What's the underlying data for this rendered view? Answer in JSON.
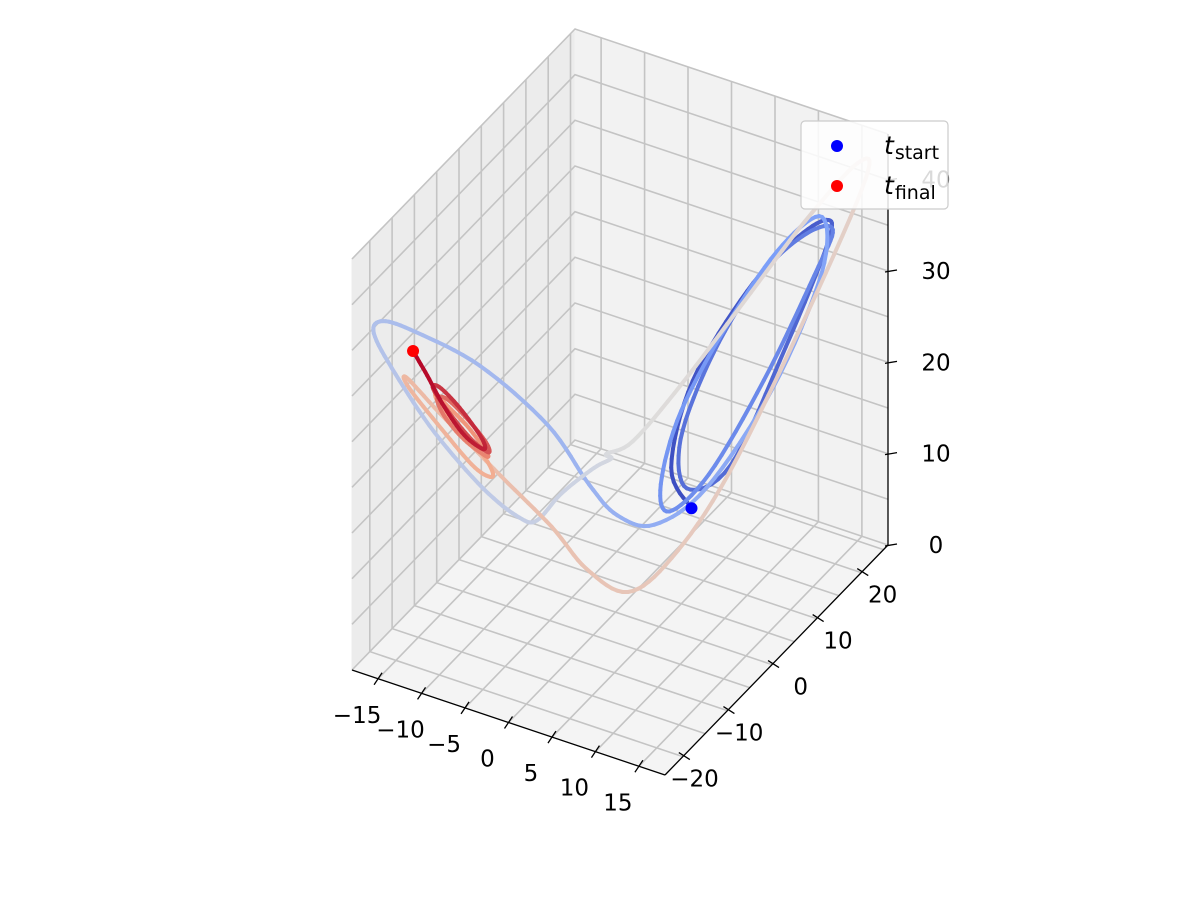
{
  "chart_data": {
    "type": "line",
    "projection": "3d",
    "title": "",
    "xlabel": "",
    "ylabel": "",
    "zlabel": "",
    "xlim": [
      -18,
      18
    ],
    "ylim": [
      -24,
      26
    ],
    "zlim": [
      0,
      45
    ],
    "x_ticks": [
      -15,
      -10,
      -5,
      0,
      5,
      10,
      15
    ],
    "y_ticks": [
      -20,
      -10,
      0,
      10,
      20
    ],
    "z_ticks": [
      0,
      10,
      20,
      30,
      40
    ],
    "grid": true,
    "colormap": "coolwarm",
    "color_encodes": "time",
    "legend": {
      "placement": "top-right",
      "entries": [
        {
          "base": "t",
          "sub": "start",
          "color": "#0000ff"
        },
        {
          "base": "t",
          "sub": "final",
          "color": "#ff0000"
        }
      ]
    },
    "series": [
      {
        "note": "trajectory, colored from blue (t_start) to red (t_final)",
        "points": [
          [
            11.3,
            -5.0,
            17.5
          ],
          [
            8.2,
            -3.5,
            20.2
          ],
          [
            7.6,
            2.5,
            26.5
          ],
          [
            9.0,
            12.0,
            32.0
          ],
          [
            11.5,
            17.5,
            35.5
          ],
          [
            14.5,
            19.0,
            38.0
          ],
          [
            16.5,
            15.5,
            38.0
          ],
          [
            15.5,
            8.0,
            30.0
          ],
          [
            13.0,
            0.5,
            20.0
          ],
          [
            10.0,
            -3.5,
            18.5
          ],
          [
            8.0,
            -1.0,
            22.0
          ],
          [
            8.2,
            6.0,
            28.0
          ],
          [
            10.0,
            13.5,
            33.5
          ],
          [
            12.8,
            18.0,
            36.5
          ],
          [
            15.5,
            18.5,
            37.5
          ],
          [
            16.2,
            13.0,
            35.5
          ],
          [
            14.5,
            5.0,
            27.5
          ],
          [
            11.5,
            -1.5,
            19.5
          ],
          [
            8.5,
            -4.5,
            16.0
          ],
          [
            7.0,
            -3.5,
            18.0
          ],
          [
            6.8,
            1.5,
            23.5
          ],
          [
            8.3,
            10.0,
            30.0
          ],
          [
            10.5,
            17.0,
            35.0
          ],
          [
            13.5,
            20.0,
            37.5
          ],
          [
            15.5,
            16.0,
            34.0
          ],
          [
            14.0,
            8.0,
            25.0
          ],
          [
            10.5,
            0.0,
            17.0
          ],
          [
            6.0,
            -3.0,
            13.0
          ],
          [
            2.0,
            -3.5,
            13.0
          ],
          [
            -1.5,
            -3.0,
            15.0
          ],
          [
            -5.5,
            -4.5,
            21.0
          ],
          [
            -11.0,
            -9.0,
            28.0
          ],
          [
            -15.5,
            -14.5,
            33.0
          ],
          [
            -17.0,
            -19.0,
            36.0
          ],
          [
            -16.0,
            -23.0,
            37.0
          ],
          [
            -13.0,
            -24.0,
            34.0
          ],
          [
            -10.0,
            -21.0,
            27.0
          ],
          [
            -8.0,
            -14.0,
            18.0
          ],
          [
            -7.5,
            -7.0,
            11.5
          ],
          [
            -8.0,
            -2.0,
            8.5
          ],
          [
            -7.0,
            1.5,
            10.0
          ],
          [
            -4.0,
            3.0,
            13.0
          ],
          [
            -1.0,
            1.0,
            16.0
          ],
          [
            0.5,
            -3.0,
            19.0
          ],
          [
            2.5,
            -1.0,
            20.0
          ],
          [
            5.0,
            5.0,
            24.0
          ],
          [
            8.5,
            12.0,
            30.5
          ],
          [
            12.0,
            19.0,
            37.0
          ],
          [
            15.5,
            24.0,
            42.0
          ],
          [
            17.5,
            22.0,
            42.0
          ],
          [
            16.0,
            12.0,
            32.0
          ],
          [
            12.0,
            2.0,
            18.0
          ],
          [
            8.0,
            -3.0,
            10.0
          ],
          [
            4.0,
            -5.0,
            6.0
          ],
          [
            0.0,
            -6.5,
            8.0
          ],
          [
            -3.5,
            -7.5,
            12.0
          ],
          [
            -7.5,
            -11.0,
            18.0
          ],
          [
            -12.0,
            -16.0,
            26.0
          ],
          [
            -14.0,
            -19.5,
            31.0
          ],
          [
            -13.0,
            -21.0,
            31.0
          ],
          [
            -10.5,
            -18.5,
            26.0
          ],
          [
            -9.0,
            -14.0,
            20.0
          ],
          [
            -9.0,
            -10.0,
            17.0
          ],
          [
            -10.3,
            -9.0,
            18.0
          ],
          [
            -12.0,
            -11.0,
            21.5
          ],
          [
            -13.0,
            -14.0,
            25.5
          ],
          [
            -12.5,
            -16.0,
            28.0
          ],
          [
            -11.0,
            -16.5,
            27.5
          ],
          [
            -9.5,
            -14.5,
            24.5
          ],
          [
            -9.0,
            -11.5,
            20.5
          ],
          [
            -9.8,
            -10.0,
            19.0
          ],
          [
            -11.5,
            -11.5,
            21.0
          ],
          [
            -12.5,
            -14.0,
            24.5
          ],
          [
            -12.3,
            -16.0,
            27.5
          ],
          [
            -11.0,
            -16.3,
            28.0
          ],
          [
            -9.8,
            -14.0,
            25.0
          ],
          [
            -9.0,
            -11.5,
            21.5
          ],
          [
            -9.5,
            -10.0,
            19.5
          ],
          [
            -11.0,
            -11.0,
            21.0
          ],
          [
            -12.5,
            -13.5,
            25.0
          ],
          [
            -12.8,
            -16.0,
            28.5
          ],
          [
            -11.5,
            -17.0,
            29.5
          ],
          [
            -10.0,
            -15.5,
            27.0
          ],
          [
            -9.0,
            -12.5,
            22.5
          ],
          [
            -9.8,
            -10.5,
            20.0
          ],
          [
            -11.5,
            -11.5,
            21.5
          ],
          [
            -12.5,
            -14.0,
            25.5
          ],
          [
            -13.2,
            -16.5,
            30.0
          ],
          [
            -13.8,
            -18.5,
            33.5
          ]
        ]
      }
    ]
  }
}
